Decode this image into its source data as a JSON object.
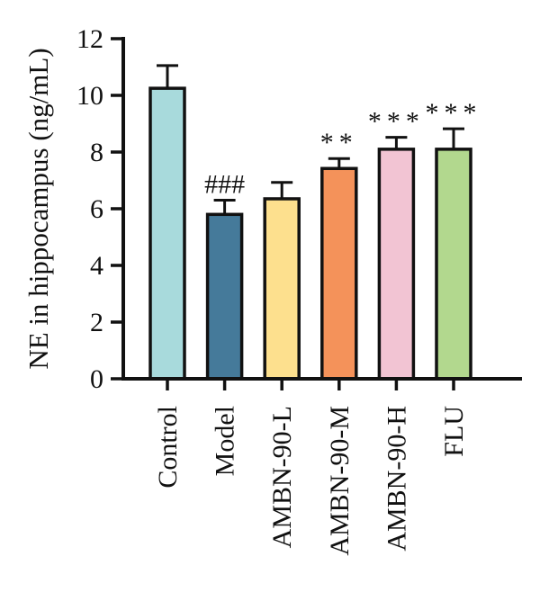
{
  "chart_data": {
    "type": "bar",
    "ylabel": "NE in hippocampus (ng/mL)",
    "xlabel": "",
    "title": "",
    "ylim": [
      0,
      12
    ],
    "yticks": [
      "0",
      "2",
      "4",
      "6",
      "8",
      "10",
      "12"
    ],
    "categories": [
      "Control",
      "Model",
      "AMBN-90-L",
      "AMBN-90-M",
      "AMBN-90-H",
      "FLU"
    ],
    "values": [
      10.25,
      5.8,
      6.35,
      7.42,
      8.1,
      8.1
    ],
    "errors": [
      0.8,
      0.5,
      0.58,
      0.35,
      0.42,
      0.72
    ],
    "annotations": [
      "",
      "###",
      "",
      "**",
      "***",
      "***"
    ],
    "colors": [
      "#a8dadc",
      "#457a9a",
      "#fde08e",
      "#f4925a",
      "#f2c4d3",
      "#b2d88e"
    ],
    "grid": false
  }
}
